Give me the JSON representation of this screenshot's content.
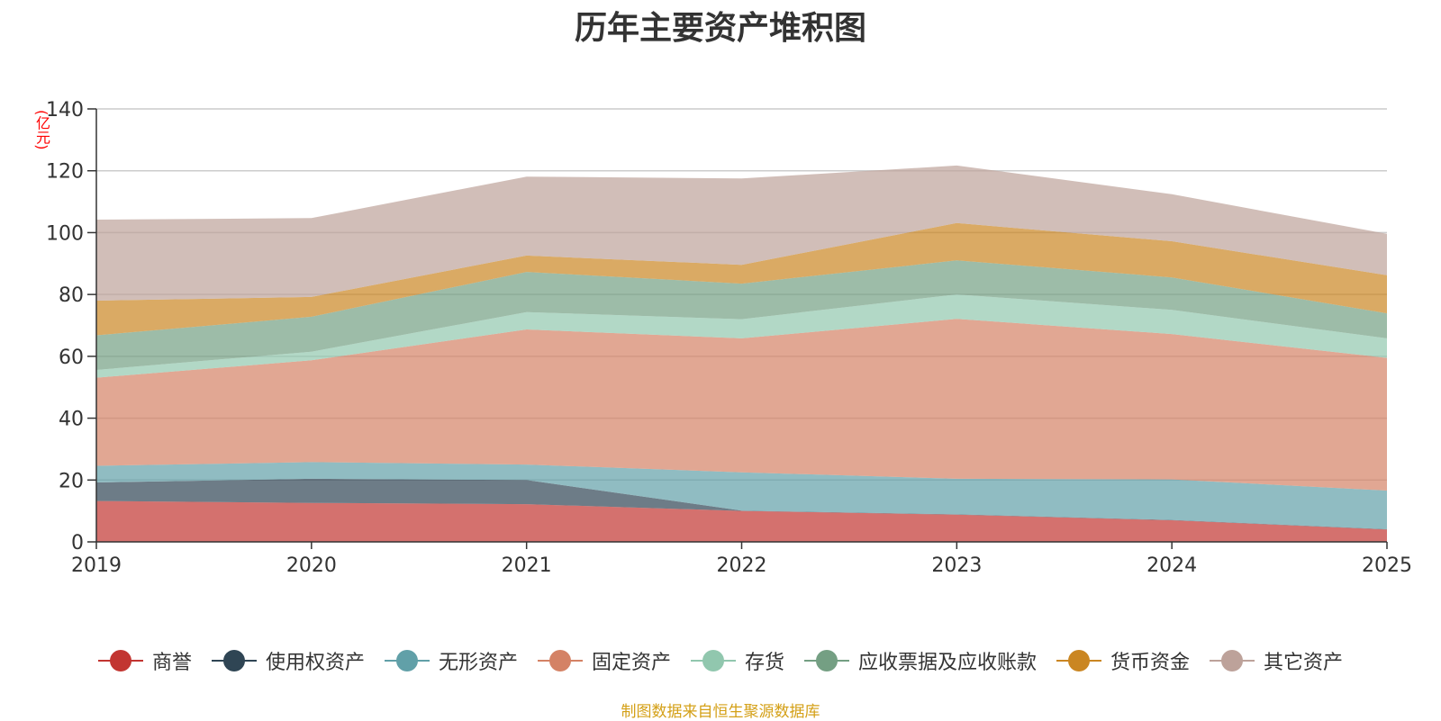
{
  "chart_data": {
    "type": "area",
    "stacked": true,
    "title": "历年主要资产堆积图",
    "ylabel": "(亿元)",
    "xlabel": "",
    "ylim": [
      0,
      140
    ],
    "yticks": [
      0,
      20,
      40,
      60,
      80,
      100,
      120,
      140
    ],
    "grid": true,
    "legend_position": "bottom",
    "categories": [
      "2019",
      "2020",
      "2021",
      "2022",
      "2023",
      "2024",
      "2025"
    ],
    "series": [
      {
        "name": "商誉",
        "color": "#c23531",
        "values": [
          13.2,
          12.6,
          12.2,
          10.0,
          8.8,
          7.0,
          4.0
        ]
      },
      {
        "name": "使用权资产",
        "color": "#2f4554",
        "values": [
          6.0,
          7.8,
          7.8,
          0.1,
          0.1,
          0.1,
          0.1
        ]
      },
      {
        "name": "无形资产",
        "color": "#61a0a8",
        "values": [
          5.4,
          5.4,
          5.0,
          12.4,
          11.5,
          13.1,
          12.5
        ]
      },
      {
        "name": "固定资产",
        "color": "#d48265",
        "values": [
          28.5,
          32.9,
          43.7,
          43.3,
          51.7,
          47.0,
          42.9
        ]
      },
      {
        "name": "存货",
        "color": "#91c7ae",
        "values": [
          2.5,
          2.8,
          5.6,
          6.2,
          7.9,
          7.8,
          6.3
        ]
      },
      {
        "name": "应收票据及应收账款",
        "color": "#749f83",
        "values": [
          11.2,
          11.3,
          13.0,
          11.5,
          11.0,
          10.5,
          8.1
        ]
      },
      {
        "name": "货币资金",
        "color": "#ca8622",
        "values": [
          11.2,
          6.4,
          5.3,
          6.1,
          12.1,
          11.7,
          12.3
        ]
      },
      {
        "name": "其它资产",
        "color": "#bda29a",
        "values": [
          26.2,
          25.5,
          25.5,
          27.9,
          18.6,
          15.2,
          13.4
        ]
      }
    ]
  },
  "source_note": "制图数据来自恒生聚源数据库"
}
